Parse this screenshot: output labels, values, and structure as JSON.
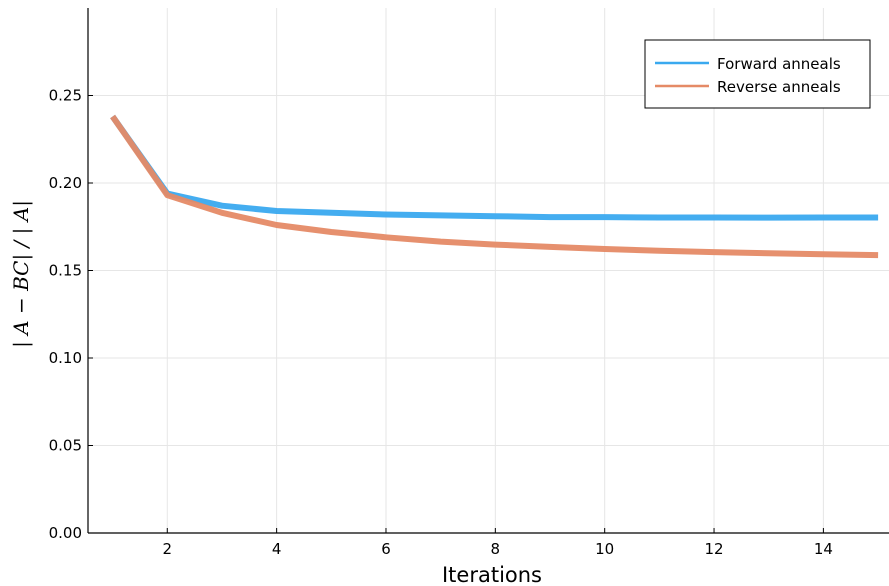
{
  "chart_data": {
    "type": "line",
    "xlabel": "Iterations",
    "ylabel": "| A − BC| / | A|",
    "xlim": [
      0.55,
      15.2
    ],
    "ylim": [
      0.0,
      0.3
    ],
    "xticks": [
      2,
      4,
      6,
      8,
      10,
      12,
      14
    ],
    "yticks": [
      0.0,
      0.05,
      0.1,
      0.15,
      0.2,
      0.25
    ],
    "ytick_labels": [
      "0.00",
      "0.05",
      "0.10",
      "0.15",
      "0.20",
      "0.25"
    ],
    "grid": true,
    "legend_position": "top-right",
    "series": [
      {
        "name": "Forward anneals",
        "color": "#3aa9ef",
        "x": [
          1,
          2,
          3,
          4,
          5,
          6,
          7,
          8,
          9,
          10,
          11,
          12,
          13,
          14,
          15
        ],
        "y": [
          0.238,
          0.194,
          0.187,
          0.184,
          0.183,
          0.182,
          0.1815,
          0.181,
          0.1805,
          0.1805,
          0.1803,
          0.1803,
          0.1802,
          0.1803,
          0.1803
        ]
      },
      {
        "name": "Reverse anneals",
        "color": "#e58a66",
        "x": [
          1,
          2,
          3,
          4,
          5,
          6,
          7,
          8,
          9,
          10,
          11,
          12,
          13,
          14,
          15
        ],
        "y": [
          0.238,
          0.193,
          0.183,
          0.176,
          0.172,
          0.169,
          0.1665,
          0.1648,
          0.1635,
          0.1623,
          0.1613,
          0.1605,
          0.1598,
          0.1593,
          0.1588
        ]
      }
    ]
  }
}
